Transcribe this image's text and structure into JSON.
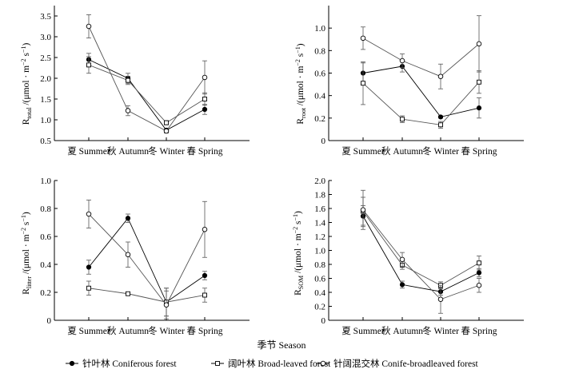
{
  "figure": {
    "x_axis_title": "季节  Season",
    "legend": [
      {
        "name": "针叶林 Coniferous forest",
        "marker": "filled-circle"
      },
      {
        "name": "阔叶林 Broad-leaved forest",
        "marker": "open-square"
      },
      {
        "name": "针阔混交林 Conife-broadleaved forest",
        "marker": "open-circle"
      }
    ]
  },
  "chart_data": [
    {
      "type": "line",
      "ylabel": "R_total /(μmol·m⁻² s⁻¹)",
      "ylabel_main": "R",
      "ylabel_sub": "total",
      "ylabel_rest": " /(μmol · m",
      "ylabel_sup1": "−2",
      "ylabel_mid": " s",
      "ylabel_sup2": "−1",
      "ylabel_end": ")",
      "categories": [
        "夏 Summer",
        "秋 Autumn",
        "冬 Winter",
        "春 Spring"
      ],
      "ylim": [
        0.5,
        3.75
      ],
      "yticks": [
        "0.5",
        "1.0",
        "1.5",
        "2.0",
        "2.5",
        "3.0",
        "3.5"
      ],
      "series": [
        {
          "name": "针叶林 Coniferous forest",
          "values": [
            2.45,
            2.0,
            0.75,
            1.25
          ],
          "errors": [
            0.15,
            0.12,
            0.05,
            0.12
          ]
        },
        {
          "name": "阔叶林 Broad-leaved forest",
          "values": [
            2.32,
            1.95,
            0.93,
            1.5
          ],
          "errors": [
            0.2,
            0.1,
            0.05,
            0.15
          ]
        },
        {
          "name": "针阔混交林 Conife-broadleaved forest",
          "values": [
            3.25,
            1.22,
            0.73,
            2.02
          ],
          "errors": [
            0.28,
            0.12,
            0.05,
            0.4
          ]
        }
      ]
    },
    {
      "type": "line",
      "ylabel": "R_root /(μmol·m⁻² s⁻¹)",
      "ylabel_main": "R",
      "ylabel_sub": "root",
      "ylabel_rest": " /(μmol · m",
      "ylabel_sup1": "−2",
      "ylabel_mid": " s",
      "ylabel_sup2": "−1",
      "ylabel_end": ")",
      "categories": [
        "夏 Summer",
        "秋 Autumn",
        "冬 Winter",
        "春 Spring"
      ],
      "ylim": [
        0.0,
        1.2
      ],
      "yticks": [
        "0",
        "0.2",
        "0.4",
        "0.6",
        "0.8",
        "1.0"
      ],
      "series": [
        {
          "name": "针叶林 Coniferous forest",
          "values": [
            0.6,
            0.66,
            0.21,
            0.29
          ],
          "errors": [
            0.09,
            0.05,
            0.01,
            0.09
          ]
        },
        {
          "name": "阔叶林 Broad-leaved forest",
          "values": [
            0.51,
            0.19,
            0.14,
            0.52
          ],
          "errors": [
            0.19,
            0.03,
            0.03,
            0.1
          ]
        },
        {
          "name": "针阔混交林 Conife-broadleaved forest",
          "values": [
            0.91,
            0.71,
            0.57,
            0.86
          ],
          "errors": [
            0.1,
            0.06,
            0.11,
            0.25
          ]
        }
      ]
    },
    {
      "type": "line",
      "ylabel": "R_litter /(μmol·m⁻² s⁻¹)",
      "ylabel_main": "R",
      "ylabel_sub": "litter",
      "ylabel_rest": " /(μmol · m",
      "ylabel_sup1": "−2",
      "ylabel_mid": " s",
      "ylabel_sup2": "−1",
      "ylabel_end": ")",
      "categories": [
        "夏 Summer",
        "秋 Autumn",
        "冬 Winter",
        "春 Spring"
      ],
      "ylim": [
        0.0,
        1.0
      ],
      "yticks": [
        "0",
        "0.2",
        "0.4",
        "0.6",
        "0.8",
        "1.0"
      ],
      "series": [
        {
          "name": "针叶林 Coniferous forest",
          "values": [
            0.38,
            0.73,
            0.13,
            0.32
          ],
          "errors": [
            0.05,
            0.03,
            0.1,
            0.03
          ]
        },
        {
          "name": "阔叶林 Broad-leaved forest",
          "values": [
            0.23,
            0.19,
            0.13,
            0.18
          ],
          "errors": [
            0.05,
            0.01,
            0.1,
            0.05
          ]
        },
        {
          "name": "针阔混交林 Conife-broadleaved forest",
          "values": [
            0.76,
            0.47,
            0.11,
            0.65
          ],
          "errors": [
            0.1,
            0.09,
            0.1,
            0.2
          ]
        }
      ]
    },
    {
      "type": "line",
      "ylabel": "R_SOM /(μmol·m⁻² s⁻¹)",
      "ylabel_main": "R",
      "ylabel_sub": "SOM",
      "ylabel_rest": " /(μmol · m",
      "ylabel_sup1": "−2",
      "ylabel_mid": " s",
      "ylabel_sup2": "−1",
      "ylabel_end": ")",
      "categories": [
        "夏 Summer",
        "秋 Autumn",
        "冬 Winter",
        "春 Spring"
      ],
      "ylim": [
        0.0,
        2.0
      ],
      "yticks": [
        "0",
        "0.2",
        "0.4",
        "0.6",
        "0.8",
        "1.0",
        "1.2",
        "1.4",
        "1.6",
        "1.8",
        "2.0"
      ],
      "series": [
        {
          "name": "针叶林 Coniferous forest",
          "values": [
            1.49,
            0.51,
            0.41,
            0.68
          ],
          "errors": [
            0.15,
            0.05,
            0.05,
            0.06
          ]
        },
        {
          "name": "阔叶林 Broad-leaved forest",
          "values": [
            1.56,
            0.79,
            0.5,
            0.82
          ],
          "errors": [
            0.2,
            0.06,
            0.05,
            0.1
          ]
        },
        {
          "name": "针阔混交林 Conife-broadleaved forest",
          "values": [
            1.58,
            0.87,
            0.3,
            0.5
          ],
          "errors": [
            0.28,
            0.1,
            0.2,
            0.1
          ]
        }
      ]
    }
  ]
}
